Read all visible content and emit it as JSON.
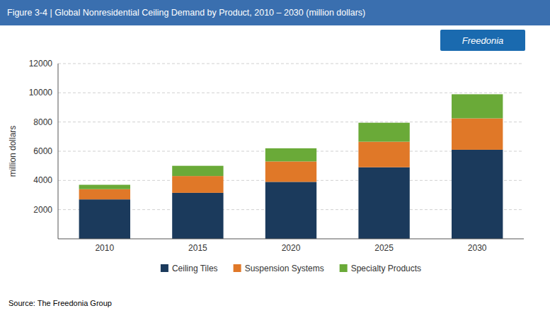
{
  "chart_data": {
    "type": "bar",
    "stacked": true,
    "title": "Figure 3-4 | Global Nonresidential Ceiling Demand by Product, 2010 – 2030 (million dollars)",
    "ylabel": "million dollars",
    "categories": [
      "2010",
      "2015",
      "2020",
      "2025",
      "2030"
    ],
    "series": [
      {
        "name": "Ceiling Tiles",
        "color": "#1b3a5c",
        "values": [
          2700,
          3150,
          3900,
          4900,
          6100
        ]
      },
      {
        "name": "Suspension Systems",
        "color": "#e07828",
        "values": [
          700,
          1150,
          1400,
          1750,
          2150
        ]
      },
      {
        "name": "Specialty Products",
        "color": "#6aaa38",
        "values": [
          300,
          700,
          900,
          1300,
          1650
        ]
      }
    ],
    "ylim": [
      0,
      12000
    ],
    "yticks": [
      2000,
      4000,
      6000,
      8000,
      10000,
      12000
    ],
    "grid": true,
    "legend": "bottom",
    "annotations": [
      "Freedonia",
      "Source: The Freedonia Group"
    ]
  }
}
